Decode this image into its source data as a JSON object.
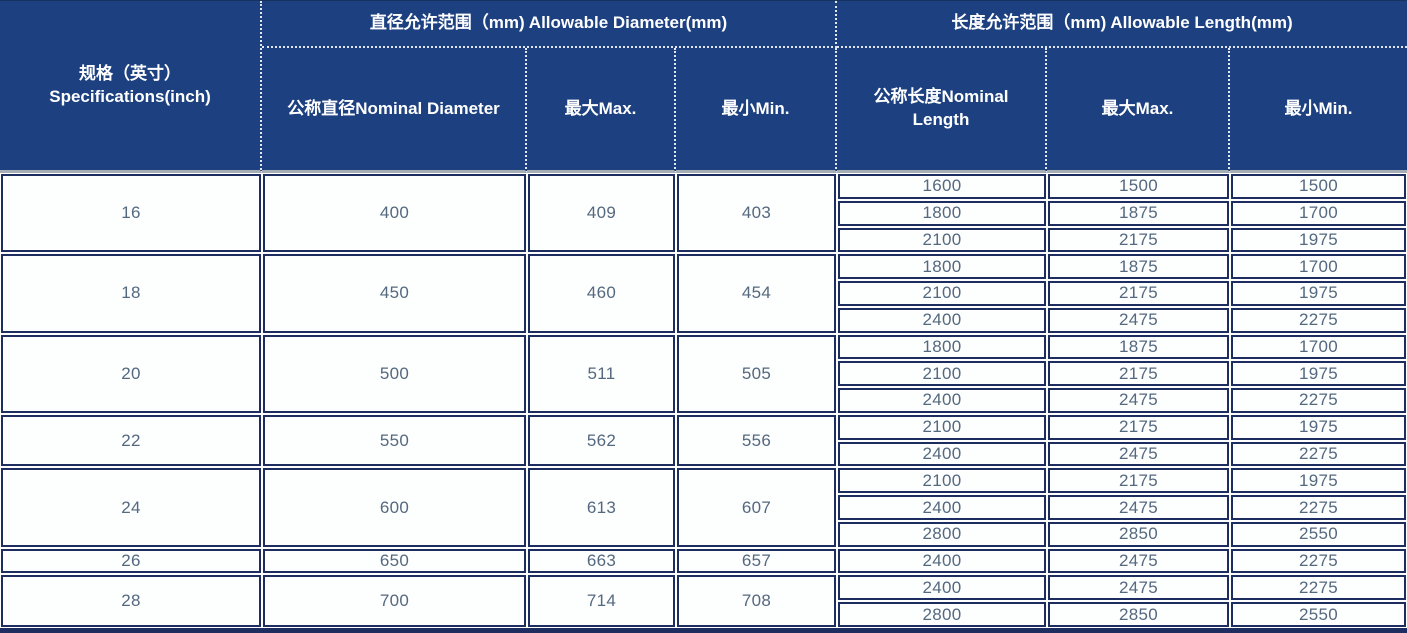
{
  "table": {
    "header": {
      "spec_zh": "规格（英寸）",
      "spec_en": "Specifications(inch)",
      "diameter_group": "直径允许范围（mm) Allowable Diameter(mm)",
      "length_group": "长度允许范围（mm) Allowable Length(mm)",
      "nominal_diameter": "公称直径Nominal Diameter",
      "diameter_max": "最大Max.",
      "diameter_min": "最小Min.",
      "nominal_length": "公称长度Nominal Length",
      "length_max": "最大Max.",
      "length_min": "最小Min."
    },
    "blocks": [
      {
        "inch": "16",
        "nominal_diameter": "400",
        "diameter_max": "409",
        "diameter_min": "403",
        "lengths": [
          [
            "1600",
            "1500",
            "1500"
          ],
          [
            "1800",
            "1875",
            "1700"
          ],
          [
            "2100",
            "2175",
            "1975"
          ]
        ]
      },
      {
        "inch": "18",
        "nominal_diameter": "450",
        "diameter_max": "460",
        "diameter_min": "454",
        "lengths": [
          [
            "1800",
            "1875",
            "1700"
          ],
          [
            "2100",
            "2175",
            "1975"
          ],
          [
            "2400",
            "2475",
            "2275"
          ]
        ]
      },
      {
        "inch": "20",
        "nominal_diameter": "500",
        "diameter_max": "511",
        "diameter_min": "505",
        "lengths": [
          [
            "1800",
            "1875",
            "1700"
          ],
          [
            "2100",
            "2175",
            "1975"
          ],
          [
            "2400",
            "2475",
            "2275"
          ]
        ]
      },
      {
        "inch": "22",
        "nominal_diameter": "550",
        "diameter_max": "562",
        "diameter_min": "556",
        "lengths": [
          [
            "2100",
            "2175",
            "1975"
          ],
          [
            "2400",
            "2475",
            "2275"
          ]
        ]
      },
      {
        "inch": "24",
        "nominal_diameter": "600",
        "diameter_max": "613",
        "diameter_min": "607",
        "lengths": [
          [
            "2100",
            "2175",
            "1975"
          ],
          [
            "2400",
            "2475",
            "2275"
          ],
          [
            "2800",
            "2850",
            "2550"
          ]
        ]
      },
      {
        "inch": "26",
        "nominal_diameter": "650",
        "diameter_max": "663",
        "diameter_min": "657",
        "lengths": [
          [
            "2400",
            "2475",
            "2275"
          ]
        ]
      },
      {
        "inch": "28",
        "nominal_diameter": "700",
        "diameter_max": "714",
        "diameter_min": "708",
        "lengths": [
          [
            "2400",
            "2475",
            "2275"
          ],
          [
            "2800",
            "2850",
            "2550"
          ]
        ]
      }
    ]
  },
  "colors": {
    "header_bg": "#1c4080",
    "header_text": "#ffffff",
    "cell_border": "#1d2d5f",
    "body_text": "#54687f",
    "junction_line": "#a6adb5"
  },
  "chart_data": {
    "type": "table",
    "columns": [
      "规格（英寸）Specifications(inch)",
      "公称直径Nominal Diameter",
      "直径最大Max.",
      "直径最小Min.",
      "公称长度Nominal Length",
      "长度最大Max.",
      "长度最小Min."
    ],
    "rows": [
      [
        16,
        400,
        409,
        403,
        1600,
        1500,
        1500
      ],
      [
        16,
        400,
        409,
        403,
        1800,
        1875,
        1700
      ],
      [
        16,
        400,
        409,
        403,
        2100,
        2175,
        1975
      ],
      [
        18,
        450,
        460,
        454,
        1800,
        1875,
        1700
      ],
      [
        18,
        450,
        460,
        454,
        2100,
        2175,
        1975
      ],
      [
        18,
        450,
        460,
        454,
        2400,
        2475,
        2275
      ],
      [
        20,
        500,
        511,
        505,
        1800,
        1875,
        1700
      ],
      [
        20,
        500,
        511,
        505,
        2100,
        2175,
        1975
      ],
      [
        20,
        500,
        511,
        505,
        2400,
        2475,
        2275
      ],
      [
        22,
        550,
        562,
        556,
        2100,
        2175,
        1975
      ],
      [
        22,
        550,
        562,
        556,
        2400,
        2475,
        2275
      ],
      [
        24,
        600,
        613,
        607,
        2100,
        2175,
        1975
      ],
      [
        24,
        600,
        613,
        607,
        2400,
        2475,
        2275
      ],
      [
        24,
        600,
        613,
        607,
        2800,
        2850,
        2550
      ],
      [
        26,
        650,
        663,
        657,
        2400,
        2475,
        2275
      ],
      [
        28,
        700,
        714,
        708,
        2400,
        2475,
        2275
      ],
      [
        28,
        700,
        714,
        708,
        2800,
        2850,
        2550
      ]
    ]
  }
}
